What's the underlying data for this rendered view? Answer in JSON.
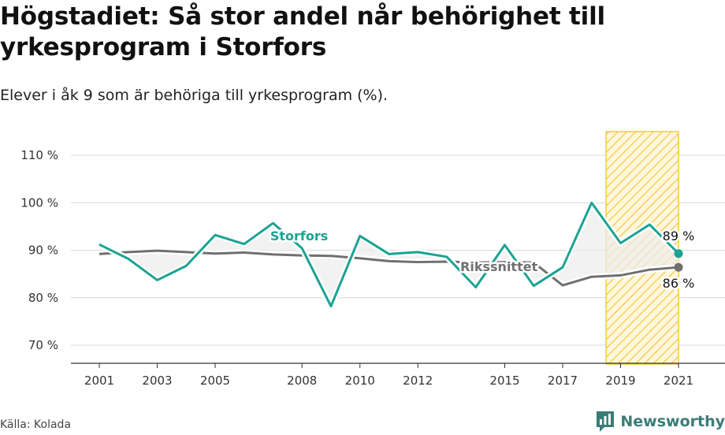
{
  "title": "Högstadiet: Så stor andel når behörighet till yrkesprogram i Storfors",
  "subtitle": "Elever i åk 9 som är behöriga till yrkesprogram (%).",
  "source": "Källa: Kolada",
  "brand": "Newsworthy",
  "colors": {
    "storfors": "#1aa393",
    "riket": "#707070",
    "highlight": "#f5c842",
    "grid": "#d8d8d8"
  },
  "chart_data": {
    "type": "line",
    "x_ticks": [
      2001,
      2003,
      2005,
      2008,
      2010,
      2012,
      2015,
      2017,
      2019,
      2021
    ],
    "y_ticks": [
      70,
      80,
      90,
      100,
      110
    ],
    "y_tick_labels": [
      "70 %",
      "80 %",
      "90 %",
      "100 %",
      "110 %"
    ],
    "xlim": [
      2001,
      2021
    ],
    "ylim": [
      66,
      115
    ],
    "highlight_range": [
      2018.5,
      2021
    ],
    "series": [
      {
        "name": "Storfors",
        "label": "Storfors",
        "x": [
          2001,
          2002,
          2003,
          2004,
          2005,
          2006,
          2007,
          2008,
          2009,
          2010,
          2011,
          2012,
          2013,
          2014,
          2015,
          2016,
          2017,
          2018,
          2019,
          2020,
          2021
        ],
        "values": [
          91.2,
          88.2,
          83.7,
          86.7,
          93.2,
          91.3,
          95.7,
          90.4,
          78.2,
          93.0,
          89.2,
          89.6,
          88.6,
          82.2,
          91.1,
          82.5,
          86.4,
          100.0,
          91.5,
          95.4,
          89.3
        ],
        "end_label": "89 %"
      },
      {
        "name": "Rikssnittet",
        "label": "Rikssnittet",
        "x": [
          2001,
          2002,
          2003,
          2004,
          2005,
          2006,
          2007,
          2008,
          2009,
          2010,
          2011,
          2012,
          2013,
          2014,
          2015,
          2016,
          2017,
          2018,
          2019,
          2020,
          2021
        ],
        "values": [
          89.2,
          89.6,
          89.9,
          89.6,
          89.3,
          89.5,
          89.1,
          88.9,
          88.8,
          88.3,
          87.7,
          87.5,
          87.6,
          87.4,
          87.5,
          87.4,
          82.6,
          84.4,
          84.7,
          85.9,
          86.4
        ],
        "end_label": "86 %"
      }
    ]
  }
}
